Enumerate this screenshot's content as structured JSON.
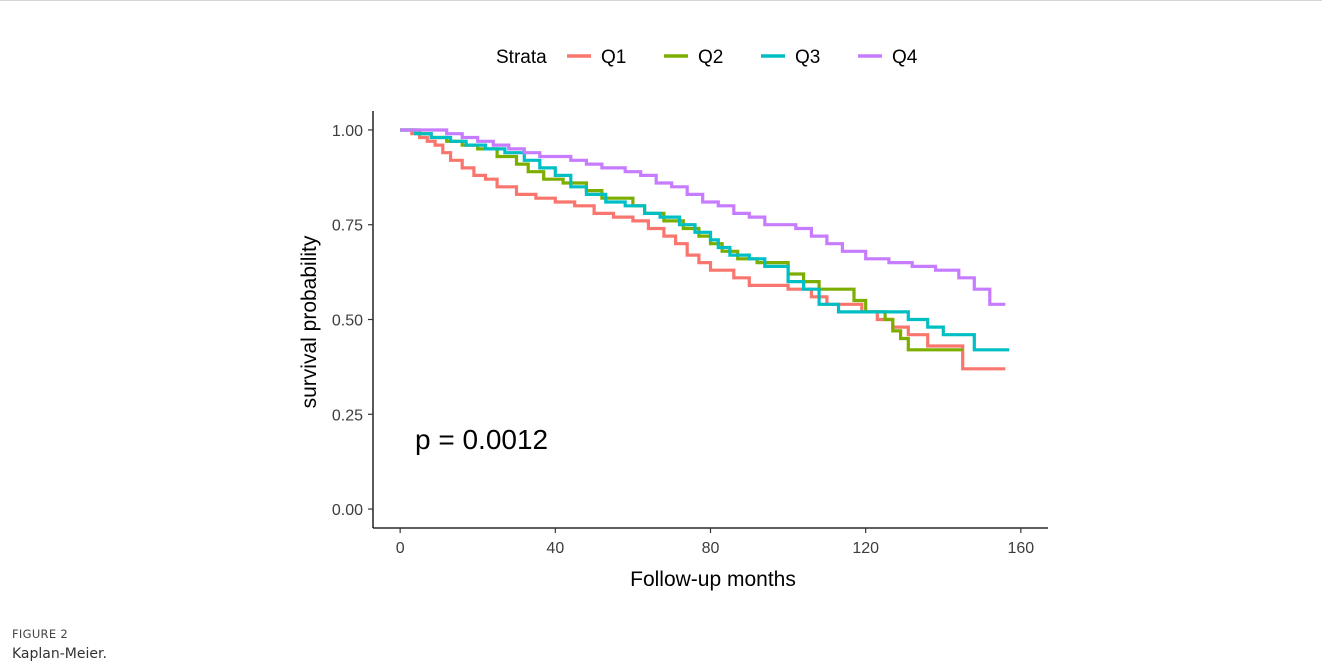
{
  "figure": {
    "label": "FIGURE 2",
    "caption": "Kaplan-Meier."
  },
  "chart_data": {
    "type": "line",
    "subtype": "kaplan-meier step curve",
    "title": "",
    "xlabel": "Follow-up months",
    "ylabel": "survival probability",
    "xlim": [
      -7,
      167
    ],
    "ylim": [
      -0.05,
      1.05
    ],
    "x_ticks": [
      0,
      40,
      80,
      120,
      160
    ],
    "x_tick_labels": [
      "0",
      "40",
      "80",
      "120",
      "160"
    ],
    "y_ticks": [
      0,
      0.25,
      0.5,
      0.75,
      1
    ],
    "y_tick_labels": [
      "0.00",
      "0.25",
      "0.50",
      "0.75",
      "1.00"
    ],
    "grid": false,
    "legend_position": "top",
    "legend_title": "Strata",
    "annotation": "p = 0.0012",
    "series": [
      {
        "name": "Q1",
        "color": "#F8766D",
        "points": [
          [
            0,
            1.0
          ],
          [
            3,
            0.99
          ],
          [
            5,
            0.98
          ],
          [
            7,
            0.97
          ],
          [
            9,
            0.96
          ],
          [
            11,
            0.94
          ],
          [
            13,
            0.92
          ],
          [
            16,
            0.9
          ],
          [
            19,
            0.88
          ],
          [
            22,
            0.87
          ],
          [
            25,
            0.85
          ],
          [
            30,
            0.83
          ],
          [
            35,
            0.82
          ],
          [
            40,
            0.81
          ],
          [
            45,
            0.8
          ],
          [
            50,
            0.78
          ],
          [
            55,
            0.77
          ],
          [
            60,
            0.76
          ],
          [
            64,
            0.74
          ],
          [
            68,
            0.72
          ],
          [
            71,
            0.7
          ],
          [
            74,
            0.67
          ],
          [
            77,
            0.65
          ],
          [
            80,
            0.63
          ],
          [
            86,
            0.61
          ],
          [
            90,
            0.59
          ],
          [
            100,
            0.58
          ],
          [
            106,
            0.56
          ],
          [
            110,
            0.54
          ],
          [
            119,
            0.52
          ],
          [
            123,
            0.5
          ],
          [
            127,
            0.48
          ],
          [
            131,
            0.46
          ],
          [
            136,
            0.43
          ],
          [
            145,
            0.37
          ],
          [
            156,
            0.37
          ]
        ]
      },
      {
        "name": "Q2",
        "color": "#7CAE00",
        "points": [
          [
            0,
            1.0
          ],
          [
            5,
            0.99
          ],
          [
            8,
            0.98
          ],
          [
            12,
            0.97
          ],
          [
            16,
            0.96
          ],
          [
            20,
            0.95
          ],
          [
            25,
            0.93
          ],
          [
            30,
            0.91
          ],
          [
            33,
            0.89
          ],
          [
            37,
            0.87
          ],
          [
            42,
            0.86
          ],
          [
            48,
            0.84
          ],
          [
            52,
            0.82
          ],
          [
            60,
            0.8
          ],
          [
            63,
            0.78
          ],
          [
            68,
            0.76
          ],
          [
            73,
            0.74
          ],
          [
            77,
            0.72
          ],
          [
            80,
            0.7
          ],
          [
            83,
            0.68
          ],
          [
            87,
            0.66
          ],
          [
            92,
            0.65
          ],
          [
            100,
            0.62
          ],
          [
            104,
            0.6
          ],
          [
            108,
            0.58
          ],
          [
            117,
            0.55
          ],
          [
            120,
            0.52
          ],
          [
            125,
            0.5
          ],
          [
            127,
            0.47
          ],
          [
            129,
            0.45
          ],
          [
            131,
            0.42
          ],
          [
            145,
            0.42
          ]
        ]
      },
      {
        "name": "Q3",
        "color": "#00BFC4",
        "points": [
          [
            0,
            1.0
          ],
          [
            4,
            0.99
          ],
          [
            8,
            0.98
          ],
          [
            13,
            0.97
          ],
          [
            17,
            0.96
          ],
          [
            22,
            0.95
          ],
          [
            27,
            0.94
          ],
          [
            32,
            0.92
          ],
          [
            36,
            0.9
          ],
          [
            40,
            0.88
          ],
          [
            44,
            0.85
          ],
          [
            48,
            0.83
          ],
          [
            53,
            0.81
          ],
          [
            58,
            0.8
          ],
          [
            63,
            0.78
          ],
          [
            67,
            0.77
          ],
          [
            72,
            0.75
          ],
          [
            76,
            0.73
          ],
          [
            80,
            0.71
          ],
          [
            82,
            0.69
          ],
          [
            85,
            0.67
          ],
          [
            90,
            0.66
          ],
          [
            94,
            0.64
          ],
          [
            100,
            0.6
          ],
          [
            104,
            0.58
          ],
          [
            108,
            0.54
          ],
          [
            113,
            0.52
          ],
          [
            125,
            0.52
          ],
          [
            131,
            0.5
          ],
          [
            136,
            0.48
          ],
          [
            140,
            0.46
          ],
          [
            148,
            0.42
          ],
          [
            157,
            0.42
          ]
        ]
      },
      {
        "name": "Q4",
        "color": "#C77CFF",
        "points": [
          [
            0,
            1.0
          ],
          [
            10,
            1.0
          ],
          [
            12,
            0.99
          ],
          [
            16,
            0.98
          ],
          [
            20,
            0.97
          ],
          [
            24,
            0.96
          ],
          [
            28,
            0.95
          ],
          [
            32,
            0.94
          ],
          [
            36,
            0.93
          ],
          [
            44,
            0.92
          ],
          [
            48,
            0.91
          ],
          [
            52,
            0.9
          ],
          [
            58,
            0.89
          ],
          [
            62,
            0.88
          ],
          [
            66,
            0.86
          ],
          [
            70,
            0.85
          ],
          [
            74,
            0.83
          ],
          [
            78,
            0.81
          ],
          [
            82,
            0.8
          ],
          [
            86,
            0.78
          ],
          [
            90,
            0.77
          ],
          [
            94,
            0.75
          ],
          [
            102,
            0.74
          ],
          [
            106,
            0.72
          ],
          [
            110,
            0.7
          ],
          [
            114,
            0.68
          ],
          [
            120,
            0.66
          ],
          [
            126,
            0.65
          ],
          [
            132,
            0.64
          ],
          [
            138,
            0.63
          ],
          [
            144,
            0.61
          ],
          [
            148,
            0.58
          ],
          [
            152,
            0.54
          ],
          [
            156,
            0.54
          ]
        ]
      }
    ]
  }
}
